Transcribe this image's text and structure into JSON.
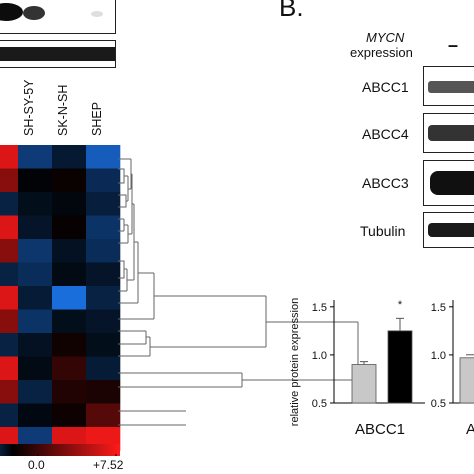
{
  "panel_b": {
    "label": "B.",
    "gene": "MYCN",
    "expression_word": "expression",
    "condition_minus": "–",
    "blot_rows": [
      "ABCC1",
      "ABCC4",
      "ABCC3",
      "Tubulin"
    ]
  },
  "heatmap": {
    "columns": [
      "SH-SY-5Y",
      "SK-N-SH",
      "SHEP"
    ],
    "scale_mid": "0.0",
    "scale_max": "+7.52",
    "low_color": "#1e7fff",
    "mid_color": "#000000",
    "high_color": "#ff1a1a",
    "values": [
      [
        -3.5,
        -1.5,
        -5.5
      ],
      [
        -0.2,
        0.3,
        -2.5
      ],
      [
        -0.8,
        -0.4,
        -1.8
      ],
      [
        -1.2,
        0.2,
        -3.0
      ],
      [
        -3.2,
        -1.0,
        -2.6
      ],
      [
        -2.6,
        -0.6,
        -1.2
      ],
      [
        -1.6,
        -6.5,
        -2.0
      ],
      [
        -3.0,
        -0.8,
        -1.2
      ],
      [
        -1.0,
        0.5,
        -0.8
      ],
      [
        -0.6,
        1.5,
        -1.6
      ],
      [
        -2.0,
        1.0,
        0.8
      ],
      [
        -0.5,
        0.4,
        2.5
      ],
      [
        -3.5,
        6.5,
        7.0
      ]
    ]
  },
  "chart_data": {
    "type": "bar",
    "ylabel": "relative protein expression",
    "xlabel": "ABCC1",
    "yticks": [
      "0.5",
      "1.0",
      "1.5"
    ],
    "ylim": [
      0.5,
      1.55
    ],
    "significance_marker": "*",
    "series": [
      {
        "color": "#c8c8c8",
        "value": 0.9,
        "error": 0.03
      },
      {
        "color": "#000000",
        "value": 1.25,
        "error": 0.13
      }
    ],
    "second_panel": {
      "yticks": [
        "0.5",
        "1.0",
        "1.5"
      ],
      "value": 0.97,
      "xlabel_fragment": "A"
    }
  }
}
